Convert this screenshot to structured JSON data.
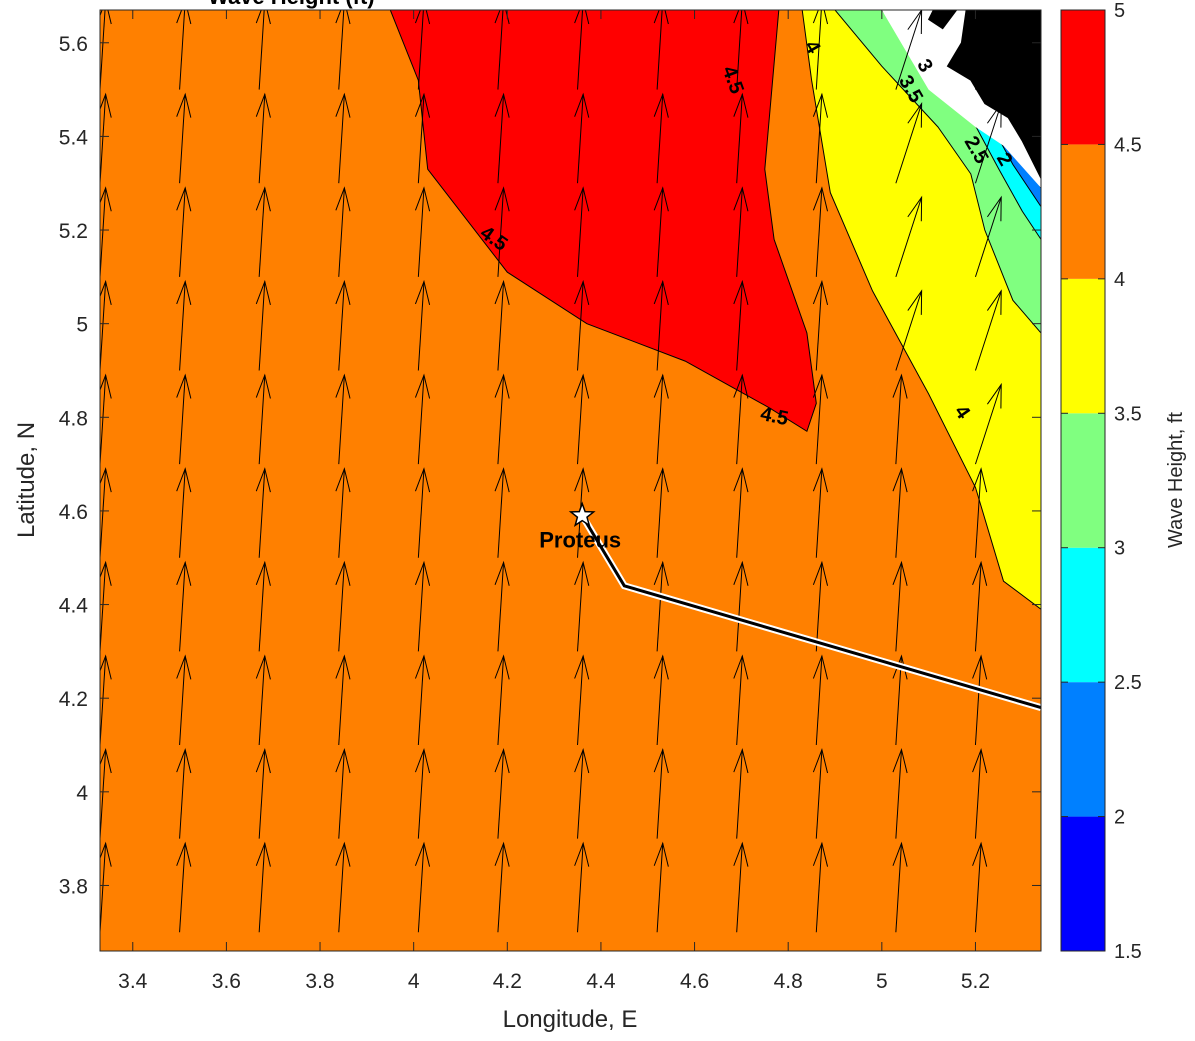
{
  "chart_data": {
    "type": "contour",
    "title": "Wave Height (ft)",
    "xlabel": "Longitude, E",
    "ylabel": "Latitude, N",
    "xlim": [
      3.33,
      5.34
    ],
    "ylim": [
      3.66,
      5.67
    ],
    "xticks": [
      3.4,
      3.6,
      3.8,
      4,
      4.2,
      4.4,
      4.6,
      4.8,
      5,
      5.2
    ],
    "xtick_labels": [
      "3.4",
      "3.6",
      "3.8",
      "4",
      "4.2",
      "4.4",
      "4.6",
      "4.8",
      "5",
      "5.2"
    ],
    "yticks": [
      3.8,
      4,
      4.2,
      4.4,
      4.6,
      4.8,
      5,
      5.2,
      5.4,
      5.6
    ],
    "ytick_labels": [
      "3.8",
      "4",
      "4.2",
      "4.4",
      "4.6",
      "4.8",
      "5",
      "5.2",
      "5.4",
      "5.6"
    ],
    "colorbar": {
      "label": "Wave Height, ft",
      "levels": [
        1.5,
        2,
        2.5,
        3,
        3.5,
        4,
        4.5,
        5
      ],
      "level_labels": [
        "1.5",
        "2",
        "2.5",
        "3",
        "3.5",
        "4",
        "4.5",
        "5"
      ],
      "colors": [
        "#0000ff",
        "#0080ff",
        "#00ffff",
        "#80ff80",
        "#ffff00",
        "#ff8000",
        "#ff0000"
      ]
    },
    "regions": [
      {
        "level": "4-4.5",
        "color": "#ff8000",
        "points": [
          [
            3.33,
            3.66
          ],
          [
            5.34,
            3.66
          ],
          [
            5.34,
            5.67
          ],
          [
            3.33,
            5.67
          ]
        ]
      },
      {
        "level": "4.5-5",
        "color": "#ff0000",
        "points": [
          [
            3.95,
            5.67
          ],
          [
            4.78,
            5.67
          ],
          [
            4.75,
            5.33
          ],
          [
            4.77,
            5.18
          ],
          [
            4.84,
            4.98
          ],
          [
            4.86,
            4.83
          ],
          [
            4.84,
            4.77
          ],
          [
            4.76,
            4.82
          ],
          [
            4.58,
            4.92
          ],
          [
            4.37,
            5.0
          ],
          [
            4.2,
            5.11
          ],
          [
            4.03,
            5.33
          ],
          [
            4.01,
            5.52
          ]
        ]
      },
      {
        "level": "3.5-4",
        "color": "#ffff00",
        "points": [
          [
            4.83,
            5.67
          ],
          [
            5.34,
            5.67
          ],
          [
            5.34,
            4.39
          ],
          [
            5.26,
            4.45
          ],
          [
            5.2,
            4.65
          ],
          [
            5.1,
            4.85
          ],
          [
            4.98,
            5.07
          ],
          [
            4.89,
            5.28
          ],
          [
            4.85,
            5.52
          ]
        ]
      },
      {
        "level": "3-3.5",
        "color": "#80ff80",
        "points": [
          [
            4.9,
            5.67
          ],
          [
            5.34,
            5.67
          ],
          [
            5.34,
            4.98
          ],
          [
            5.28,
            5.05
          ],
          [
            5.22,
            5.2
          ],
          [
            5.19,
            5.32
          ],
          [
            5.12,
            5.42
          ],
          [
            5.0,
            5.55
          ]
        ]
      },
      {
        "level": "2.5-3",
        "color": "#00ffff",
        "points": [
          [
            5.0,
            5.67
          ],
          [
            5.34,
            5.67
          ],
          [
            5.34,
            5.18
          ],
          [
            5.3,
            5.24
          ],
          [
            5.25,
            5.33
          ],
          [
            5.18,
            5.46
          ]
        ]
      },
      {
        "level": "2-2.5",
        "color": "#0080ff",
        "points": [
          [
            5.15,
            5.67
          ],
          [
            5.34,
            5.67
          ],
          [
            5.34,
            5.25
          ],
          [
            5.28,
            5.34
          ],
          [
            5.22,
            5.45
          ]
        ]
      },
      {
        "level": "1.5-2",
        "color": "#0000ff",
        "points": [
          [
            5.23,
            5.67
          ],
          [
            5.34,
            5.67
          ],
          [
            5.34,
            5.29
          ],
          [
            5.3,
            5.36
          ],
          [
            5.25,
            5.44
          ]
        ]
      }
    ],
    "land": [
      [
        [
          5.18,
          5.67
        ],
        [
          5.34,
          5.67
        ],
        [
          5.34,
          5.31
        ],
        [
          5.3,
          5.39
        ],
        [
          5.27,
          5.44
        ],
        [
          5.22,
          5.47
        ],
        [
          5.19,
          5.52
        ],
        [
          5.14,
          5.55
        ],
        [
          5.17,
          5.6
        ]
      ],
      [
        [
          5.11,
          5.67
        ],
        [
          5.16,
          5.67
        ],
        [
          5.13,
          5.63
        ],
        [
          5.1,
          5.65
        ]
      ]
    ],
    "white_areas": [
      [
        [
          5.0,
          5.67
        ],
        [
          5.34,
          5.67
        ],
        [
          5.34,
          5.29
        ],
        [
          5.26,
          5.38
        ],
        [
          5.2,
          5.42
        ],
        [
          5.1,
          5.5
        ]
      ]
    ],
    "contour_labels": [
      {
        "text": "4.5",
        "x": 4.68,
        "y": 5.52,
        "angle": 70
      },
      {
        "text": "4",
        "x": 4.85,
        "y": 5.59,
        "angle": 60
      },
      {
        "text": "3",
        "x": 5.09,
        "y": 5.55,
        "angle": 60
      },
      {
        "text": "3.5",
        "x": 5.06,
        "y": 5.5,
        "angle": 60
      },
      {
        "text": "2.5",
        "x": 5.2,
        "y": 5.37,
        "angle": 60
      },
      {
        "text": "2",
        "x": 5.26,
        "y": 5.35,
        "angle": 60
      },
      {
        "text": "4.5",
        "x": 4.17,
        "y": 5.18,
        "angle": 35
      },
      {
        "text": "4.5",
        "x": 4.77,
        "y": 4.8,
        "angle": 12
      },
      {
        "text": "4",
        "x": 5.17,
        "y": 4.81,
        "angle": 55
      }
    ],
    "vector_field": {
      "x": [
        3.33,
        3.5,
        3.67,
        3.84,
        4.01,
        4.18,
        4.35,
        4.52,
        4.69,
        4.86,
        5.03,
        5.2
      ],
      "y": [
        3.7,
        3.9,
        4.1,
        4.3,
        4.5,
        4.7,
        4.9,
        5.1,
        5.3,
        5.5
      ],
      "u": 0.012,
      "v": 0.19,
      "u_rotated": 0.055,
      "v_rotated": 0.17,
      "rotated_region": [
        [
          4.85,
          5.67
        ],
        [
          5.34,
          5.67
        ],
        [
          5.34,
          4.5
        ],
        [
          5.15,
          4.55
        ],
        [
          4.95,
          5.0
        ]
      ]
    },
    "track": {
      "points": [
        [
          4.36,
          4.59
        ],
        [
          4.45,
          4.44
        ],
        [
          5.34,
          4.18
        ]
      ],
      "color": "#000000",
      "outline": "#ffffff"
    },
    "marker": {
      "label": "Proteus",
      "x": 4.36,
      "y": 4.59,
      "symbol": "star"
    }
  }
}
